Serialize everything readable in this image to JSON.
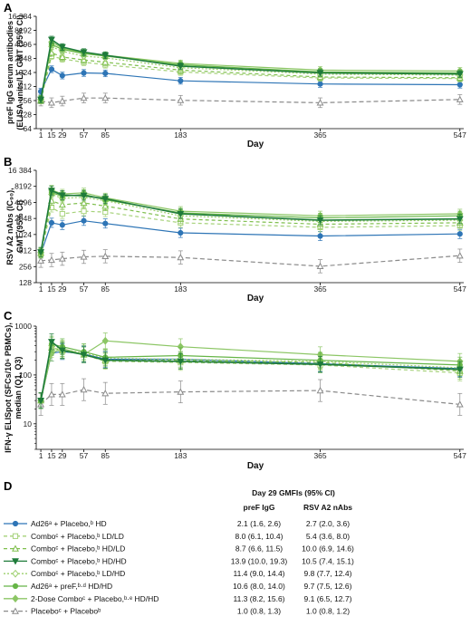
{
  "panels": [
    {
      "letter": "A",
      "ylabel": [
        "preF IgG serum antibodies",
        "(ELISA units/L), GMT (95% CI)"
      ],
      "xlabel": "Day",
      "y_ticks": [
        "64",
        "128",
        "256",
        "512",
        "1024",
        "2048",
        "4096",
        "8192",
        "16 384"
      ],
      "x_ticks": [
        "1",
        "15",
        "29",
        "57",
        "85",
        "183",
        "365",
        "547"
      ]
    },
    {
      "letter": "B",
      "ylabel": [
        "RSV A2 nAbs (IC₉₀),",
        "GMT (95% CI)"
      ],
      "xlabel": "Day",
      "y_ticks": [
        "128",
        "256",
        "512",
        "1024",
        "2048",
        "4096",
        "8192",
        "16 384"
      ],
      "x_ticks": [
        "1",
        "15",
        "29",
        "57",
        "85",
        "183",
        "365",
        "547"
      ]
    },
    {
      "letter": "C",
      "ylabel": [
        "IFN-γ ELISpot (SFCs/10⁶ PBMCs),",
        "median (Q1, Q3)"
      ],
      "xlabel": "Day",
      "y_ticks": [
        "10",
        "100",
        "1000"
      ],
      "x_ticks": [
        "1",
        "15",
        "29",
        "57",
        "85",
        "183",
        "365",
        "547"
      ]
    }
  ],
  "legend_panel": {
    "letter": "D",
    "table_title": "Day 29 GMFIs (95% CI)",
    "col1": "preF IgG",
    "col2": "RSV A2 nAbs",
    "rows": [
      {
        "label": "Ad26ᵃ + Placebo,ᵇ HD",
        "v1": "2.1 (1.6, 2.6)",
        "v2": "2.7 (2.0, 3.6)"
      },
      {
        "label": "Comboᶜ + Placebo,ᵇ LD/LD",
        "v1": "8.0 (6.1, 10.4)",
        "v2": "5.4 (3.6, 8.0)"
      },
      {
        "label": "Comboᶜ + Placebo,ᵇ HD/LD",
        "v1": "8.7 (6.6, 11.5)",
        "v2": "10.0 (6.9, 14.6)"
      },
      {
        "label": "Comboᶜ + Placebo,ᵇ HD/HD",
        "v1": "13.9 (10.0, 19.3)",
        "v2": "10.5 (7.4, 15.1)"
      },
      {
        "label": "Comboᶜ + Placebo,ᵇ LD/HD",
        "v1": "11.4 (9.0, 14.4)",
        "v2": "9.8 (7.7, 12.4)"
      },
      {
        "label": "Ad26ᵃ + preF,ᵇ·ᵈ HD/HD",
        "v1": "10.6 (8.0, 14.0)",
        "v2": "9.7 (7.5, 12.6)"
      },
      {
        "label": "2-Dose Comboᶜ + Placebo,ᵇ·ᵉ HD/HD",
        "v1": "11.3 (8.2, 15.6)",
        "v2": "9.1 (6.5, 12.7)"
      },
      {
        "label": "Placeboᶜ + Placeboᵇ",
        "v1": "1.0 (0.8, 1.3)",
        "v2": "1.0 (0.8, 1.2)"
      }
    ]
  },
  "styles": {
    "groups": [
      {
        "color": "#2e75b6",
        "dash": "",
        "marker": "circle",
        "fill": "#2e75b6"
      },
      {
        "color": "#a6d27a",
        "dash": "4,3",
        "marker": "square",
        "fill": "#ffffff"
      },
      {
        "color": "#7fbf4d",
        "dash": "4,3",
        "marker": "triangle-up",
        "fill": "#ffffff"
      },
      {
        "color": "#1e7b3a",
        "dash": "",
        "marker": "triangle-down",
        "fill": "#1e7b3a"
      },
      {
        "color": "#9ccf6c",
        "dash": "2,2",
        "marker": "diamond",
        "fill": "#ffffff"
      },
      {
        "color": "#66b547",
        "dash": "",
        "marker": "circle",
        "fill": "#66b547"
      },
      {
        "color": "#8cc665",
        "dash": "",
        "marker": "diamond",
        "fill": "#8cc665"
      },
      {
        "color": "#8a8a8a",
        "dash": "5,3",
        "marker": "triangle-up",
        "fill": "#ffffff"
      }
    ]
  },
  "chart_data": [
    {
      "type": "line",
      "ylabel": "preF IgG serum antibodies (ELISA units/L), GMT (95% CI)",
      "xlabel": "Day",
      "y_scale": "log2",
      "ylim": [
        64,
        16384
      ],
      "x": [
        1,
        15,
        29,
        57,
        85,
        183,
        365,
        547
      ],
      "series": [
        {
          "name": "Ad26ᵃ + Placebo,ᵇ HD",
          "values": [
            400,
            1200,
            880,
            1000,
            980,
            680,
            580,
            560
          ]
        },
        {
          "name": "Comboᶜ + Placebo,ᵇ LD/LD",
          "values": [
            260,
            2300,
            2000,
            1700,
            1500,
            1050,
            780,
            760
          ]
        },
        {
          "name": "Comboᶜ + Placebo,ᵇ HD/LD",
          "values": [
            260,
            2700,
            2200,
            1900,
            1700,
            1150,
            820,
            790
          ]
        },
        {
          "name": "Comboᶜ + Placebo,ᵇ HD/HD",
          "values": [
            270,
            5200,
            3600,
            2800,
            2400,
            1400,
            1000,
            950
          ]
        },
        {
          "name": "Comboᶜ + Placebo,ᵇ LD/HD",
          "values": [
            270,
            3700,
            2900,
            2300,
            2100,
            1300,
            940,
            900
          ]
        },
        {
          "name": "Ad26ᵃ + preF,ᵇ·ᵈ HD/HD",
          "values": [
            280,
            4100,
            3200,
            2600,
            2300,
            1500,
            1050,
            1000
          ]
        },
        {
          "name": "2-Dose Comboᶜ + Placebo,ᵇ·ᵉ HD/HD",
          "values": [
            270,
            4600,
            3400,
            2700,
            2400,
            1600,
            1150,
            1100
          ]
        },
        {
          "name": "Placeboᶜ + Placeboᵇ",
          "values": [
            250,
            230,
            250,
            290,
            290,
            260,
            230,
            270
          ]
        }
      ]
    },
    {
      "type": "line",
      "ylabel": "RSV A2 nAbs (IC₉₀), GMT (95% CI)",
      "xlabel": "Day",
      "y_scale": "log2",
      "ylim": [
        128,
        16384
      ],
      "x": [
        1,
        15,
        29,
        57,
        85,
        183,
        365,
        547
      ],
      "series": [
        {
          "name": "Ad26ᵃ + Placebo,ᵇ HD",
          "values": [
            450,
            1700,
            1550,
            1850,
            1650,
            1100,
            960,
            1050
          ]
        },
        {
          "name": "Comboᶜ + Placebo,ᵇ LD/LD",
          "values": [
            450,
            3300,
            2500,
            2800,
            2700,
            1700,
            1400,
            1500
          ]
        },
        {
          "name": "Comboᶜ + Placebo,ᵇ HD/LD",
          "values": [
            460,
            4400,
            3700,
            4000,
            3500,
            2000,
            1600,
            1700
          ]
        },
        {
          "name": "Comboᶜ + Placebo,ᵇ HD/HD",
          "values": [
            480,
            6800,
            5600,
            5500,
            4800,
            2500,
            1900,
            2000
          ]
        },
        {
          "name": "Comboᶜ + Placebo,ᵇ LD/HD",
          "values": [
            470,
            5800,
            4900,
            5100,
            4400,
            2300,
            1800,
            1900
          ]
        },
        {
          "name": "Ad26ᵃ + preF,ᵇ·ᵈ HD/HD",
          "values": [
            480,
            6300,
            5300,
            5800,
            4600,
            2600,
            2100,
            2300
          ]
        },
        {
          "name": "2-Dose Comboᶜ + Placebo,ᵇ·ᵉ HD/HD",
          "values": [
            470,
            7000,
            5900,
            6200,
            5000,
            2800,
            2300,
            2500
          ]
        },
        {
          "name": "Placeboᶜ + Placeboᵇ",
          "values": [
            330,
            340,
            360,
            390,
            400,
            380,
            260,
            410
          ]
        }
      ]
    },
    {
      "type": "line",
      "ylabel": "IFN-γ ELISpot (SFCs/10⁶ PBMCs), median (Q1, Q3)",
      "xlabel": "Day",
      "y_scale": "log10",
      "ylim": [
        3,
        1000
      ],
      "x": [
        1,
        15,
        29,
        57,
        85,
        183,
        365,
        547
      ],
      "series": [
        {
          "name": "Ad26ᵃ + Placebo,ᵇ HD",
          "values": [
            30,
            280,
            300,
            270,
            210,
            210,
            170,
            135
          ]
        },
        {
          "name": "Comboᶜ + Placebo,ᵇ LD/LD",
          "values": [
            30,
            330,
            310,
            260,
            190,
            180,
            160,
            110
          ]
        },
        {
          "name": "Comboᶜ + Placebo,ᵇ HD/LD",
          "values": [
            30,
            360,
            320,
            260,
            200,
            200,
            180,
            120
          ]
        },
        {
          "name": "Comboᶜ + Placebo,ᵇ HD/HD",
          "values": [
            30,
            480,
            320,
            260,
            200,
            190,
            165,
            130
          ]
        },
        {
          "name": "Comboᶜ + Placebo,ᵇ LD/HD",
          "values": [
            30,
            400,
            340,
            280,
            220,
            210,
            190,
            140
          ]
        },
        {
          "name": "Ad26ᵃ + preF,ᵇ·ᵈ HD/HD",
          "values": [
            30,
            430,
            380,
            300,
            230,
            250,
            200,
            160
          ]
        },
        {
          "name": "2-Dose Comboᶜ + Placebo,ᵇ·ᵉ HD/HD",
          "values": [
            30,
            280,
            350,
            260,
            500,
            380,
            260,
            190
          ]
        },
        {
          "name": "Placeboᶜ + Placeboᵇ",
          "values": [
            25,
            40,
            40,
            50,
            42,
            45,
            48,
            25
          ]
        }
      ]
    }
  ]
}
